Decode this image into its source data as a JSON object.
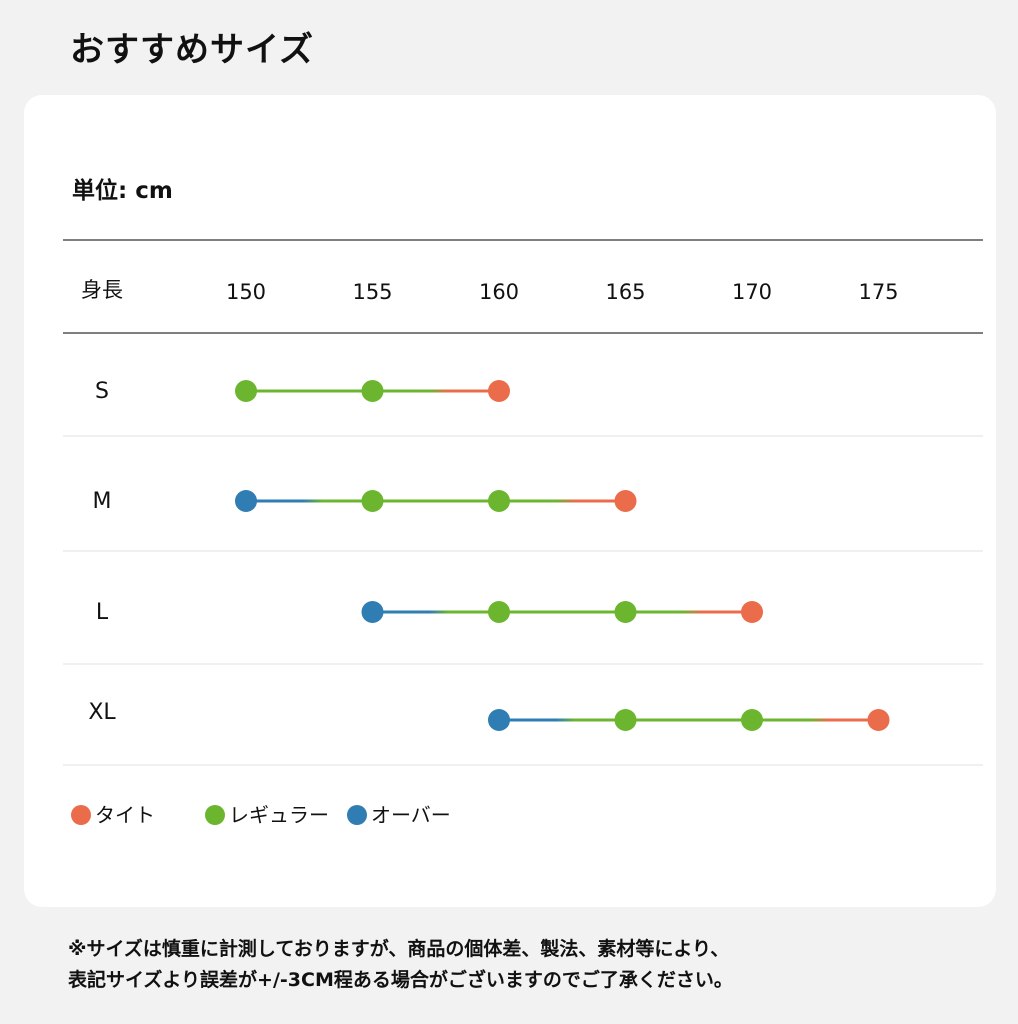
{
  "page": {
    "title": "おすすめサイズ",
    "footnote": [
      "※サイズは慎重に計測しておりますが、商品の個体差、製法、素材等により、",
      "表記サイズより誤差が+/-3CM程ある場合がございますのでご了承ください。"
    ]
  },
  "chart_data": {
    "type": "dot-range",
    "unit_label": "単位: cm",
    "x_axis_label": "身長",
    "x_ticks": [
      150,
      155,
      160,
      165,
      170,
      175
    ],
    "legend": [
      {
        "key": "tight",
        "label": "タイト",
        "color": "#eb6c4a"
      },
      {
        "key": "regular",
        "label": "レギュラー",
        "color": "#6cb52f"
      },
      {
        "key": "over",
        "label": "オーバー",
        "color": "#2f7db3"
      }
    ],
    "sizes": [
      {
        "label": "S",
        "points": [
          {
            "height": 150,
            "fit": "regular"
          },
          {
            "height": 155,
            "fit": "regular"
          },
          {
            "height": 160,
            "fit": "tight"
          }
        ]
      },
      {
        "label": "M",
        "points": [
          {
            "height": 150,
            "fit": "over"
          },
          {
            "height": 155,
            "fit": "regular"
          },
          {
            "height": 160,
            "fit": "regular"
          },
          {
            "height": 165,
            "fit": "tight"
          }
        ]
      },
      {
        "label": "L",
        "points": [
          {
            "height": 155,
            "fit": "over"
          },
          {
            "height": 160,
            "fit": "regular"
          },
          {
            "height": 165,
            "fit": "regular"
          },
          {
            "height": 170,
            "fit": "tight"
          }
        ]
      },
      {
        "label": "XL",
        "points": [
          {
            "height": 160,
            "fit": "over"
          },
          {
            "height": 165,
            "fit": "regular"
          },
          {
            "height": 170,
            "fit": "regular"
          },
          {
            "height": 175,
            "fit": "tight"
          }
        ]
      }
    ]
  }
}
